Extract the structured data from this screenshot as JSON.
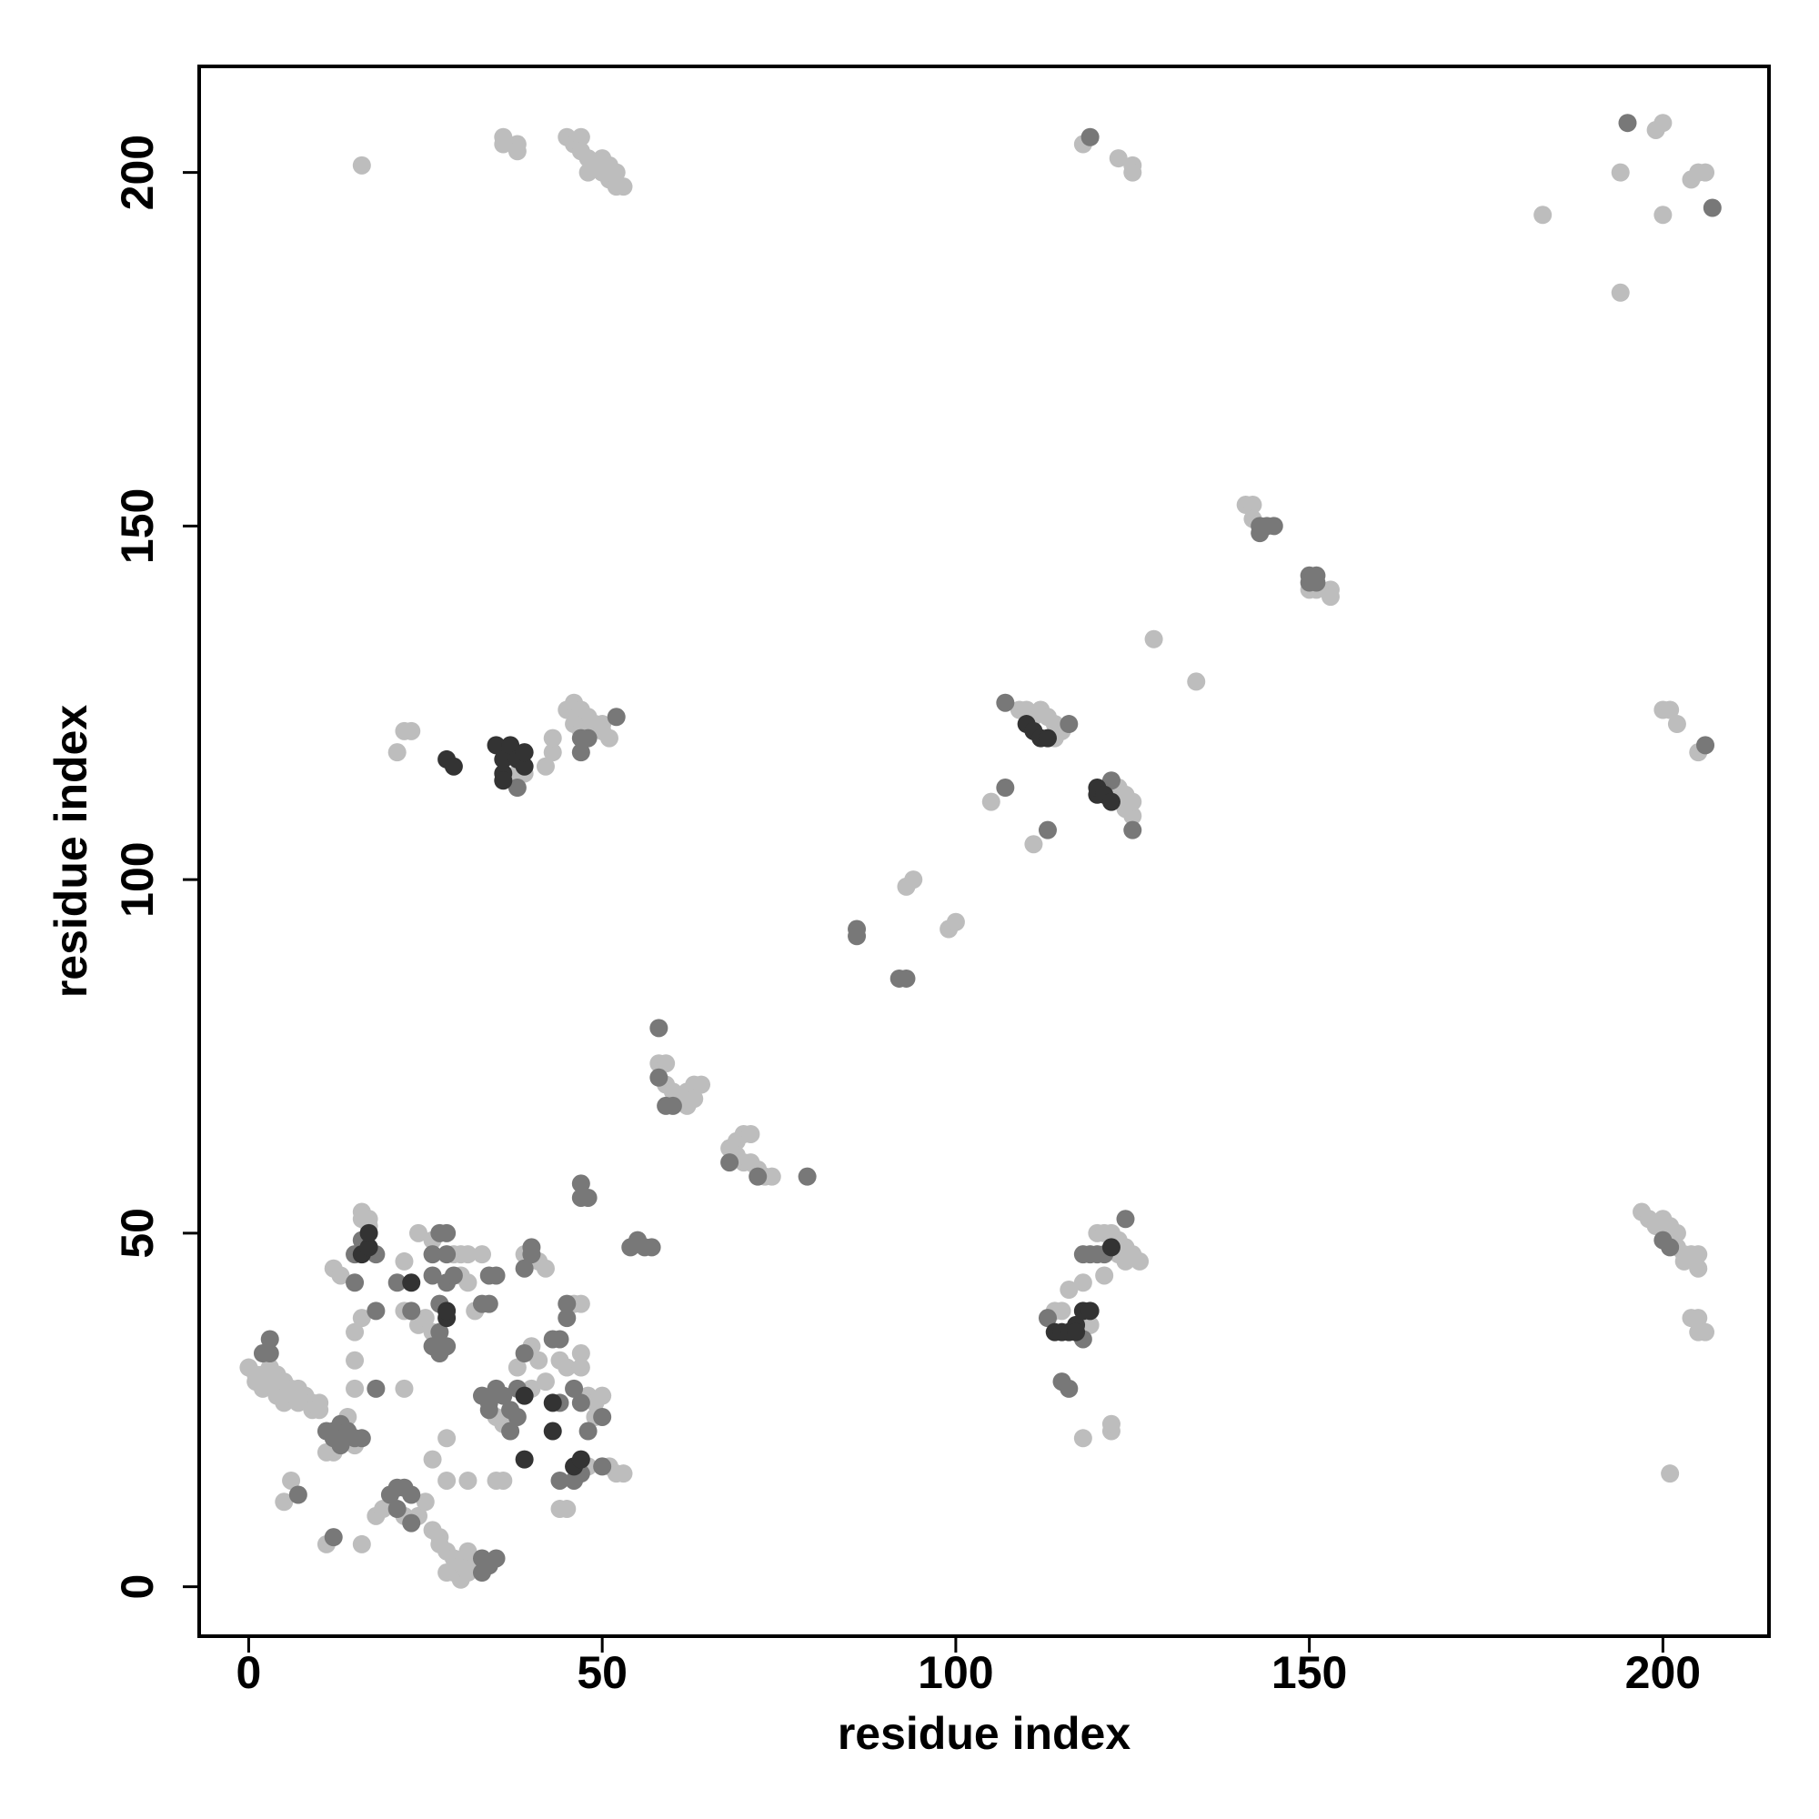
{
  "chart_data": {
    "type": "scatter",
    "x_label": "residue index",
    "y_label": "residue index",
    "xlim": [
      -7,
      215
    ],
    "ylim": [
      -7,
      215
    ],
    "xticks": [
      0,
      50,
      100,
      150,
      200
    ],
    "yticks": [
      0,
      50,
      100,
      150,
      200
    ],
    "series": [
      {
        "color": "#bdbdbd",
        "x": [
          16,
          36,
          36,
          38,
          38,
          45,
          46,
          47,
          47,
          48,
          49,
          50,
          51,
          52,
          51,
          52,
          53,
          50,
          48,
          118,
          123,
          125,
          125,
          183,
          194,
          199,
          200,
          200,
          204,
          205,
          206,
          194,
          141,
          142,
          142,
          150,
          151,
          153,
          153,
          128,
          134,
          200,
          201,
          202,
          205,
          109,
          110,
          111,
          112,
          113,
          114,
          114,
          115,
          105,
          111,
          123,
          124,
          124,
          125,
          125,
          93,
          94,
          99,
          100,
          58,
          59,
          59,
          60,
          61,
          62,
          63,
          64,
          63,
          62,
          69,
          70,
          71,
          68,
          69,
          70,
          71,
          72,
          73,
          74,
          21,
          22,
          23,
          38,
          39,
          42,
          43,
          43,
          45,
          46,
          47,
          48,
          46,
          47,
          49,
          50,
          51,
          50,
          120,
          121,
          122,
          123,
          124,
          125,
          126,
          124,
          123,
          121,
          118,
          116,
          115,
          114,
          119,
          118,
          122,
          122,
          197,
          198,
          199,
          200,
          201,
          202,
          202,
          203,
          204,
          205,
          205,
          203,
          204,
          205,
          206,
          205,
          201,
          0,
          1,
          1,
          2,
          2,
          3,
          3,
          4,
          4,
          5,
          5,
          6,
          6,
          7,
          7,
          8,
          9,
          10,
          9,
          10,
          11,
          12,
          15,
          14,
          5,
          6,
          11,
          16,
          16,
          16,
          17,
          17,
          12,
          13,
          15,
          15,
          15,
          14,
          16,
          22,
          22,
          24,
          26,
          29,
          30,
          31,
          33,
          30,
          31,
          22,
          24,
          25,
          26,
          32,
          39,
          41,
          42,
          46,
          47,
          38,
          40,
          41,
          44,
          45,
          47,
          47,
          35,
          36,
          40,
          42,
          48,
          49,
          50,
          49,
          44,
          45,
          48,
          51,
          52,
          53,
          28,
          26,
          28,
          31,
          35,
          36,
          18,
          19,
          22,
          24,
          25,
          26,
          27,
          27,
          28,
          29,
          30,
          29,
          30,
          31,
          32,
          31,
          28
        ],
        "values": [
          201,
          205,
          204,
          204,
          203,
          205,
          204,
          205,
          203,
          202,
          201,
          202,
          201,
          200,
          199,
          198,
          198,
          200,
          200,
          204,
          202,
          201,
          200,
          194,
          200,
          206,
          207,
          194,
          199,
          200,
          200,
          183,
          153,
          153,
          151,
          141,
          141,
          141,
          140,
          134,
          128,
          124,
          124,
          122,
          118,
          124,
          124,
          123,
          124,
          123,
          122,
          120,
          121,
          111,
          105,
          113,
          112,
          110,
          109,
          111,
          99,
          100,
          93,
          94,
          74,
          74,
          71,
          70,
          69,
          70,
          71,
          71,
          69,
          68,
          63,
          64,
          64,
          62,
          61,
          60,
          60,
          59,
          58,
          58,
          118,
          121,
          121,
          115,
          115,
          116,
          118,
          120,
          124,
          125,
          124,
          123,
          122,
          121,
          122,
          121,
          120,
          122,
          50,
          50,
          50,
          49,
          48,
          47,
          46,
          46,
          47,
          44,
          43,
          42,
          39,
          39,
          37,
          21,
          22,
          23,
          53,
          52,
          51,
          52,
          51,
          50,
          48,
          47,
          47,
          47,
          45,
          46,
          38,
          38,
          36,
          36,
          16,
          31,
          30,
          29,
          30,
          28,
          31,
          29,
          27,
          30,
          29,
          26,
          28,
          27,
          26,
          28,
          27,
          26,
          26,
          25,
          25,
          19,
          19,
          20,
          21,
          12,
          15,
          6,
          6,
          52,
          53,
          51,
          52,
          45,
          44,
          36,
          32,
          28,
          24,
          38,
          46,
          28,
          50,
          49,
          47,
          47,
          47,
          47,
          44,
          43,
          39,
          37,
          38,
          36,
          39,
          47,
          46,
          45,
          40,
          40,
          31,
          34,
          32,
          32,
          31,
          33,
          31,
          24,
          23,
          28,
          29,
          27,
          26,
          27,
          24,
          11,
          11,
          17,
          17,
          16,
          16,
          21,
          18,
          15,
          15,
          15,
          15,
          10,
          11,
          10,
          10,
          12,
          8,
          7,
          6,
          5,
          4,
          3,
          2,
          1,
          2,
          3,
          5,
          2
        ]
      },
      {
        "color": "#787878",
        "x": [
          195,
          207,
          119,
          143,
          144,
          145,
          143,
          150,
          150,
          151,
          151,
          206,
          107,
          116,
          107,
          113,
          122,
          125,
          86,
          86,
          92,
          93,
          58,
          58,
          59,
          60,
          68,
          72,
          79,
          47,
          47,
          48,
          54,
          55,
          56,
          57,
          38,
          47,
          47,
          48,
          52,
          124,
          120,
          121,
          119,
          118,
          113,
          118,
          115,
          116,
          200,
          201,
          2,
          3,
          3,
          11,
          12,
          13,
          14,
          15,
          16,
          12,
          13,
          7,
          12,
          15,
          18,
          16,
          15,
          18,
          18,
          21,
          27,
          28,
          26,
          28,
          26,
          28,
          29,
          34,
          35,
          23,
          27,
          26,
          27,
          28,
          27,
          33,
          34,
          40,
          39,
          40,
          45,
          45,
          39,
          43,
          44,
          33,
          34,
          35,
          36,
          37,
          34,
          37,
          38,
          38,
          44,
          46,
          47,
          50,
          48,
          44,
          46,
          47,
          50,
          20,
          21,
          22,
          23,
          21,
          23,
          33,
          34,
          33,
          35
        ],
        "values": [
          207,
          195,
          205,
          150,
          150,
          150,
          149,
          143,
          142,
          143,
          142,
          119,
          125,
          122,
          113,
          107,
          114,
          107,
          93,
          92,
          86,
          86,
          79,
          72,
          68,
          68,
          60,
          58,
          58,
          57,
          55,
          55,
          48,
          49,
          48,
          48,
          113,
          118,
          120,
          120,
          123,
          52,
          47,
          47,
          47,
          47,
          38,
          35,
          29,
          28,
          49,
          48,
          33,
          35,
          33,
          22,
          22,
          23,
          22,
          21,
          21,
          21,
          20,
          13,
          7,
          47,
          47,
          49,
          43,
          28,
          39,
          43,
          50,
          50,
          47,
          47,
          44,
          43,
          44,
          44,
          44,
          39,
          36,
          34,
          33,
          34,
          40,
          40,
          40,
          47,
          45,
          48,
          40,
          38,
          33,
          35,
          35,
          27,
          26,
          28,
          27,
          25,
          25,
          22,
          24,
          28,
          26,
          28,
          26,
          24,
          22,
          15,
          15,
          16,
          17,
          13,
          14,
          14,
          13,
          11,
          9,
          4,
          3,
          2,
          4
        ]
      },
      {
        "color": "#333333",
        "x": [
          110,
          111,
          112,
          113,
          120,
          120,
          121,
          122,
          28,
          29,
          35,
          36,
          36,
          37,
          36,
          38,
          39,
          39,
          122,
          114,
          115,
          116,
          117,
          118,
          119,
          117,
          16,
          17,
          17,
          23,
          28,
          39,
          39,
          43,
          46,
          47,
          43,
          28
        ],
        "values": [
          122,
          121,
          120,
          120,
          112,
          113,
          112,
          111,
          117,
          116,
          119,
          117,
          115,
          119,
          114,
          117,
          116,
          118,
          48,
          36,
          36,
          36,
          37,
          39,
          39,
          36,
          47,
          48,
          50,
          43,
          38,
          27,
          18,
          22,
          17,
          18,
          26,
          39
        ]
      }
    ]
  }
}
